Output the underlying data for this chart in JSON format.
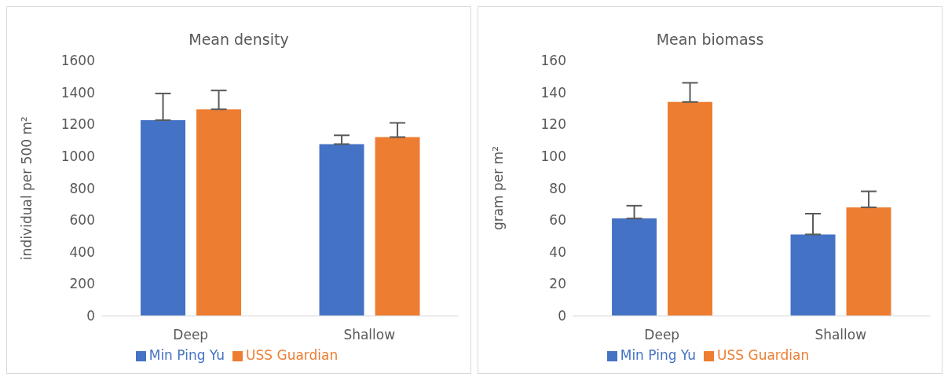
{
  "chart_data": [
    {
      "type": "bar",
      "title": "Mean density",
      "ylabel": "individual per 500 m²",
      "categories": [
        "Deep",
        "Shallow"
      ],
      "series": [
        {
          "name": "Min Ping Yu",
          "color": "#4472c4",
          "values": [
            1226,
            1076
          ],
          "errors": [
            [
              1226,
              1393
            ],
            [
              1076,
              1131
            ]
          ]
        },
        {
          "name": "USS Guardian",
          "color": "#ed7d31",
          "values": [
            1294,
            1120
          ],
          "errors": [
            [
              1294,
              1412
            ],
            [
              1120,
              1209
            ]
          ]
        }
      ],
      "ylim": [
        0,
        1600
      ],
      "yticks": [
        0,
        200,
        400,
        600,
        800,
        1000,
        1200,
        1400,
        1600
      ],
      "grid": false,
      "legend": "bottom"
    },
    {
      "type": "bar",
      "title": "Mean biomass",
      "ylabel": "gram per m²",
      "categories": [
        "Deep",
        "Shallow"
      ],
      "series": [
        {
          "name": "Min Ping Yu",
          "color": "#4472c4",
          "values": [
            61,
            51
          ],
          "errors": [
            [
              61,
              69
            ],
            [
              51,
              64
            ]
          ]
        },
        {
          "name": "USS Guardian",
          "color": "#ed7d31",
          "values": [
            134,
            68
          ],
          "errors": [
            [
              134,
              146
            ],
            [
              68,
              78
            ]
          ]
        }
      ],
      "ylim": [
        0,
        160
      ],
      "yticks": [
        0,
        20,
        40,
        60,
        80,
        100,
        120,
        140,
        160
      ],
      "grid": false,
      "legend": "bottom"
    }
  ]
}
